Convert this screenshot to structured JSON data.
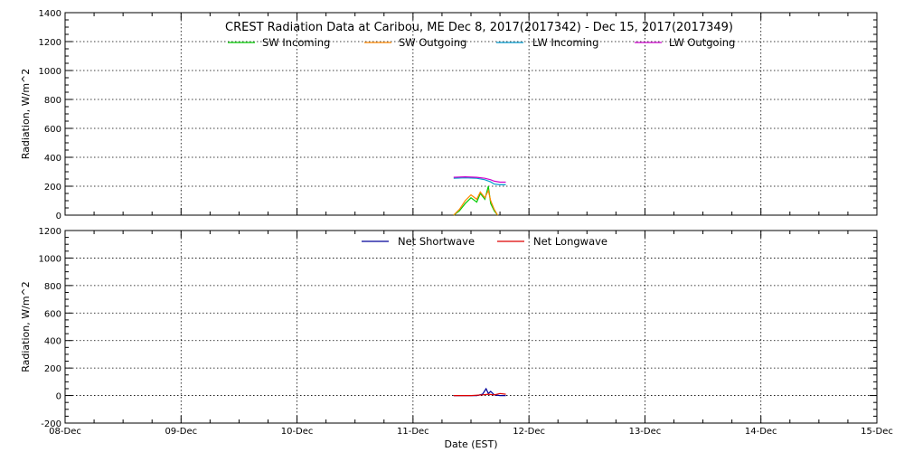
{
  "chart_data": [
    {
      "type": "line",
      "title": "CREST Radiation Data at Caribou, ME   Dec  8, 2017(2017342) - Dec 15, 2017(2017349)",
      "ylabel": "Radiation, W/m^2",
      "xlabel": "",
      "xlim": [
        0,
        7
      ],
      "ylim": [
        0,
        1400
      ],
      "yticks": [
        0,
        200,
        400,
        600,
        800,
        1000,
        1200,
        1400
      ],
      "x_tick_labels": [
        "08-Dec",
        "09-Dec",
        "10-Dec",
        "11-Dec",
        "12-Dec",
        "13-Dec",
        "14-Dec",
        "15-Dec"
      ],
      "grid": true,
      "legend_position": "top",
      "series": [
        {
          "name": "SW Incoming",
          "color": "#00cc00",
          "x": [
            3.35,
            3.4,
            3.45,
            3.5,
            3.55,
            3.58,
            3.62,
            3.65,
            3.67,
            3.7,
            3.73
          ],
          "y": [
            0,
            30,
            80,
            120,
            90,
            150,
            110,
            200,
            80,
            30,
            0
          ]
        },
        {
          "name": "SW Outgoing",
          "color": "#ff8800",
          "x": [
            3.35,
            3.4,
            3.45,
            3.5,
            3.55,
            3.58,
            3.62,
            3.65,
            3.67,
            3.7,
            3.73
          ],
          "y": [
            0,
            40,
            100,
            140,
            110,
            160,
            120,
            170,
            100,
            40,
            0
          ]
        },
        {
          "name": "LW Incoming",
          "color": "#0099cc",
          "x": [
            3.35,
            3.45,
            3.55,
            3.62,
            3.67,
            3.7,
            3.75,
            3.8
          ],
          "y": [
            255,
            258,
            255,
            245,
            230,
            215,
            210,
            210
          ]
        },
        {
          "name": "LW Outgoing",
          "color": "#cc00cc",
          "x": [
            3.35,
            3.45,
            3.55,
            3.62,
            3.67,
            3.7,
            3.75,
            3.8
          ],
          "y": [
            262,
            265,
            262,
            255,
            245,
            235,
            228,
            228
          ]
        }
      ]
    },
    {
      "type": "line",
      "title": "",
      "ylabel": "Radiation, W/m^2",
      "xlabel": "Date (EST)",
      "xlim": [
        0,
        7
      ],
      "ylim": [
        -200,
        1200
      ],
      "yticks": [
        -200,
        0,
        200,
        400,
        600,
        800,
        1000,
        1200
      ],
      "x_tick_labels": [
        "08-Dec",
        "09-Dec",
        "10-Dec",
        "11-Dec",
        "12-Dec",
        "13-Dec",
        "14-Dec",
        "15-Dec"
      ],
      "grid": true,
      "legend_position": "top",
      "series": [
        {
          "name": "Net Shortwave",
          "color": "#000099",
          "x": [
            3.35,
            3.55,
            3.6,
            3.63,
            3.65,
            3.67,
            3.7,
            3.75,
            3.8
          ],
          "y": [
            0,
            0,
            10,
            50,
            15,
            30,
            5,
            0,
            0
          ]
        },
        {
          "name": "Net Longwave",
          "color": "#dd0000",
          "x": [
            3.35,
            3.5,
            3.6,
            3.65,
            3.7,
            3.75,
            3.8
          ],
          "y": [
            0,
            0,
            5,
            10,
            5,
            15,
            10
          ]
        }
      ]
    }
  ]
}
